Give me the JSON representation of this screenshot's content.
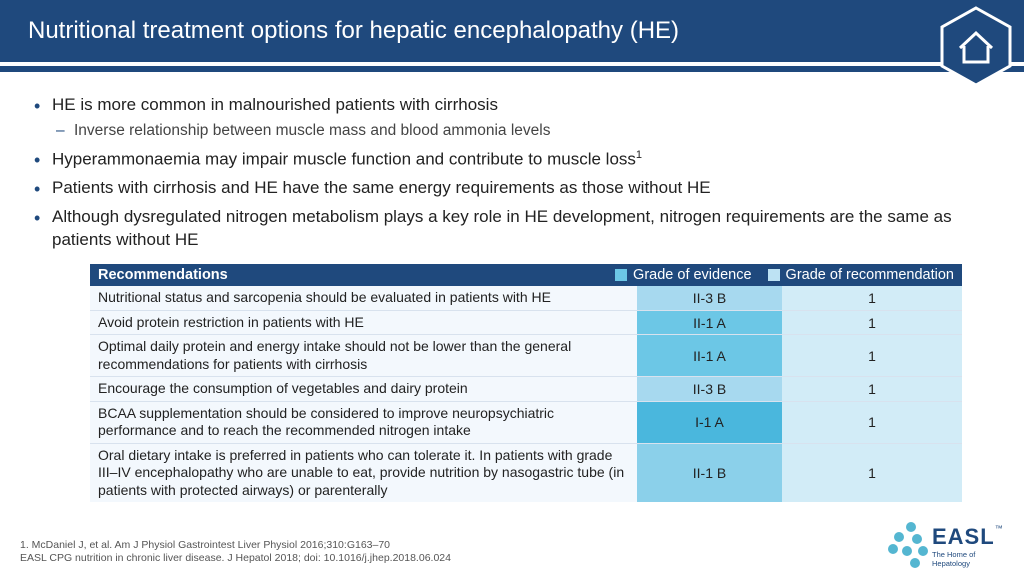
{
  "header": {
    "title": "Nutritional treatment options for hepatic encephalopathy (HE)",
    "band_color": "#1f497d",
    "title_color": "#ffffff",
    "title_fontsize": 24
  },
  "home_icon": {
    "name": "home-icon"
  },
  "bullets": [
    {
      "text": "HE is more common in malnourished patients with cirrhosis",
      "sub": [
        "Inverse relationship between muscle mass and blood ammonia levels"
      ]
    },
    {
      "text_html": "Hyperammonaemia may impair muscle function and contribute to muscle loss",
      "sup": "1"
    },
    {
      "text": "Patients with cirrhosis and HE have the same energy requirements as those without HE"
    },
    {
      "text": "Although dysregulated nitrogen metabolism plays a key role in HE development, nitrogen requirements are the same as patients without HE"
    }
  ],
  "table": {
    "header": {
      "rec_label": "Recommendations",
      "evidence_label": "Grade of evidence",
      "recommendation_label": "Grade of recommendation",
      "bg": "#1f497d",
      "evidence_swatch": "#6cc7e6",
      "recommendation_swatch": "#bde2f3"
    },
    "col_widths": {
      "evidence": 145,
      "recommendation": 180
    },
    "row_bg": "#f3f8fd",
    "evidence_colors": {
      "II-3 B": "#a7d9ef",
      "II-1 A": "#6cc7e6",
      "I-1 A": "#4ab7dd",
      "II-1 B": "#8bd0ea"
    },
    "recommendation_bg": "#d2ecf7",
    "rows": [
      {
        "rec": "Nutritional status and sarcopenia should be evaluated in patients with HE",
        "evidence": "II-3 B",
        "grade": "1"
      },
      {
        "rec": "Avoid protein restriction in patients with HE",
        "evidence": "II-1 A",
        "grade": "1"
      },
      {
        "rec": "Optimal daily protein and energy intake should not be lower than the general recommendations for patients with cirrhosis",
        "evidence": "II-1 A",
        "grade": "1"
      },
      {
        "rec": "Encourage the consumption of vegetables and dairy protein",
        "evidence": "II-3 B",
        "grade": "1"
      },
      {
        "rec": "BCAA supplementation should be considered to improve neuropsychiatric performance and to reach the recommended nitrogen intake",
        "evidence": "I-1 A",
        "grade": "1"
      },
      {
        "rec": "Oral dietary intake is preferred in patients who can tolerate it. In patients with grade III–IV encephalopathy who are unable to eat, provide nutrition by nasogastric tube (in patients with protected airways) or parenterally",
        "evidence": "II-1 B",
        "grade": "1"
      }
    ]
  },
  "footer": {
    "ref1": "1. McDaniel J, et al. Am J Physiol Gastrointest Liver Physiol 2016;310:G163–70",
    "ref2": "EASL CPG nutrition in chronic liver disease. J Hepatol 2018; doi: 10.1016/j.jhep.2018.06.024"
  },
  "logo": {
    "text": "EASL",
    "tm": "™",
    "tagline": "The Home of Hepatology",
    "dot_color": "#54b6d1",
    "text_color": "#1f497d"
  }
}
